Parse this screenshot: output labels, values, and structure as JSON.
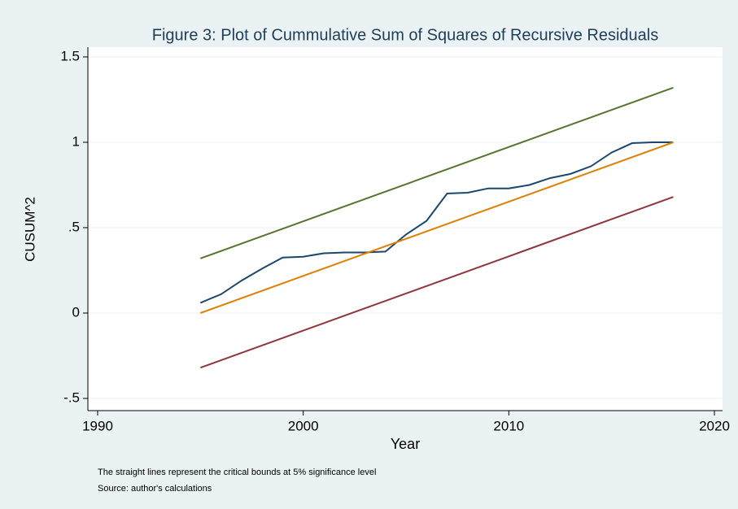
{
  "chart_data": {
    "type": "line",
    "title": "Figure 3: Plot of Cummulative Sum of Squares of Recursive Residuals",
    "xlabel": "Year",
    "ylabel": "CUSUM^2",
    "notes": [
      "The straight lines represent the critical bounds at 5% significance level",
      "Source: author's calculations"
    ],
    "series": [
      {
        "color": "#1a476f",
        "x": [
          1995,
          1996,
          1997,
          1998,
          1999,
          2000,
          2001,
          2002,
          2003,
          2004,
          2005,
          2006,
          2007,
          2008,
          2009,
          2010,
          2011,
          2012,
          2013,
          2014,
          2015,
          2016,
          2017,
          2018
        ],
        "values": [
          0.06,
          0.11,
          0.19,
          0.26,
          0.325,
          0.33,
          0.35,
          0.355,
          0.355,
          0.36,
          0.46,
          0.54,
          0.7,
          0.705,
          0.73,
          0.73,
          0.75,
          0.79,
          0.815,
          0.86,
          0.94,
          0.995,
          1.0,
          1.0
        ]
      },
      {
        "color": "#e37e00",
        "x": [
          1995,
          2018
        ],
        "values": [
          0,
          1
        ]
      },
      {
        "color": "#55752f",
        "x": [
          1995,
          2018
        ],
        "values": [
          0.32,
          1.32
        ]
      },
      {
        "color": "#90353b",
        "x": [
          1995,
          2018
        ],
        "values": [
          -0.32,
          0.68
        ]
      }
    ],
    "xlim": [
      1990,
      2020
    ],
    "xticks": [
      1990,
      2000,
      2010,
      2020
    ],
    "ylim": [
      -0.5,
      1.5
    ],
    "yticks": [
      {
        "value": -0.5,
        "label": "-.5"
      },
      0,
      {
        "value": 0.5,
        "label": ".5"
      },
      1,
      1.5
    ],
    "grid": true
  }
}
